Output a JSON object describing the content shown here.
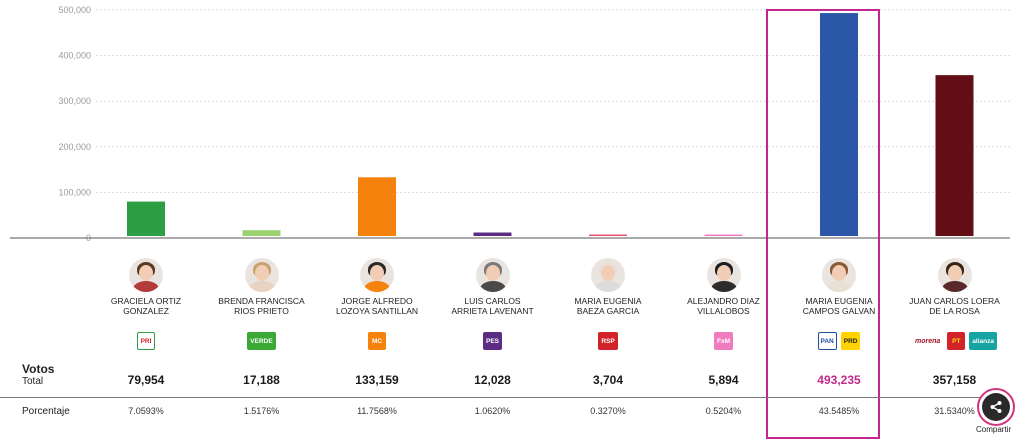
{
  "chart_data": {
    "type": "bar",
    "categories": [
      "GRACIELA ORTIZ GONZALEZ",
      "BRENDA FRANCISCA RIOS PRIETO",
      "JORGE ALFREDO LOZOYA SANTILLAN",
      "LUIS CARLOS ARRIETA LAVENANT",
      "MARIA EUGENIA BAEZA GARCIA",
      "ALEJANDRO DIAZ VILLALOBOS",
      "MARIA EUGENIA CAMPOS GALVAN",
      "JUAN CARLOS LOERA DE LA ROSA"
    ],
    "values": [
      79954,
      17188,
      133159,
      12028,
      3704,
      5894,
      493235,
      357158
    ],
    "ylim": [
      0,
      500000
    ],
    "yticks": [
      0,
      100000,
      200000,
      300000,
      400000,
      500000
    ],
    "ytick_labels": [
      "0",
      "100,000",
      "200,000",
      "300,000",
      "400,000",
      "500,000"
    ],
    "grid": true,
    "highlighted_index": 6
  },
  "colors": {
    "bars": [
      "#2e9e44",
      "#9bd26f",
      "#f5820d",
      "#5a2d82",
      "#e5546e",
      "#f07cbf",
      "#2b57a8",
      "#630d15"
    ],
    "highlight": "#c2288c"
  },
  "candidates": [
    {
      "name_line1": "GRACIELA ORTIZ",
      "name_line2": "GONZALEZ",
      "votes": "79,954",
      "percent": "7.0593%",
      "avatar_icon": "woman-portrait-icon",
      "hair": "#5a3a24",
      "shirt": "#b23b3b",
      "logos": [
        {
          "icon": "pri-logo-icon",
          "text": "PRI",
          "bg": "#ffffff",
          "fg": "#d2232a",
          "border": "#2e9e44"
        }
      ]
    },
    {
      "name_line1": "BRENDA FRANCISCA",
      "name_line2": "RIOS PRIETO",
      "votes": "17,188",
      "percent": "1.5176%",
      "avatar_icon": "woman-portrait-icon",
      "hair": "#c9a070",
      "shirt": "#e8d2c2",
      "logos": [
        {
          "icon": "verde-logo-icon",
          "text": "VERDE",
          "bg": "#3aa935",
          "fg": "#ffffff",
          "border": "#3aa935"
        }
      ]
    },
    {
      "name_line1": "JORGE ALFREDO",
      "name_line2": "LOZOYA SANTILLAN",
      "votes": "133,159",
      "percent": "11.7568%",
      "avatar_icon": "man-portrait-icon",
      "hair": "#2a2a2a",
      "shirt": "#f5820d",
      "logos": [
        {
          "icon": "movimiento-ciudadano-logo-icon",
          "text": "MC",
          "bg": "#f5820d",
          "fg": "#ffffff",
          "border": "#f5820d"
        }
      ]
    },
    {
      "name_line1": "LUIS CARLOS",
      "name_line2": "ARRIETA LAVENANT",
      "votes": "12,028",
      "percent": "1.0620%",
      "avatar_icon": "man-portrait-icon",
      "hair": "#7a7a7a",
      "shirt": "#4a4a4a",
      "logos": [
        {
          "icon": "pes-logo-icon",
          "text": "PES",
          "bg": "#5a2d82",
          "fg": "#ffffff",
          "border": "#5a2d82"
        }
      ]
    },
    {
      "name_line1": "MARIA EUGENIA",
      "name_line2": "BAEZA GARCIA",
      "votes": "3,704",
      "percent": "0.3270%",
      "avatar_icon": "woman-portrait-icon",
      "hair": "#e6e0d8",
      "shirt": "#dcdcdc",
      "logos": [
        {
          "icon": "rsp-logo-icon",
          "text": "RSP",
          "bg": "#d2232a",
          "fg": "#ffffff",
          "border": "#d2232a"
        }
      ]
    },
    {
      "name_line1": "ALEJANDRO DIAZ",
      "name_line2": "VILLALOBOS",
      "votes": "5,894",
      "percent": "0.5204%",
      "avatar_icon": "man-portrait-icon",
      "hair": "#1e1e1e",
      "shirt": "#2c2c2c",
      "logos": [
        {
          "icon": "fuerza-mexico-logo-icon",
          "text": "FxM",
          "bg": "#f07cbf",
          "fg": "#ffffff",
          "border": "#f07cbf"
        }
      ]
    },
    {
      "name_line1": "MARIA EUGENIA",
      "name_line2": "CAMPOS GALVAN",
      "votes": "493,235",
      "percent": "43.5485%",
      "avatar_icon": "woman-portrait-icon",
      "hair": "#8a5a34",
      "shirt": "#e9dfd4",
      "logos": [
        {
          "icon": "pan-logo-icon",
          "text": "PAN",
          "bg": "#ffffff",
          "fg": "#1f4e9d",
          "border": "#1f4e9d"
        },
        {
          "icon": "prd-logo-icon",
          "text": "PRD",
          "bg": "#ffd200",
          "fg": "#222222",
          "border": "#ffd200"
        }
      ]
    },
    {
      "name_line1": "JUAN CARLOS LOERA",
      "name_line2": "DE LA ROSA",
      "votes": "357,158",
      "percent": "31.5340%",
      "avatar_icon": "man-portrait-icon",
      "hair": "#3a2418",
      "shirt": "#5a2a2a",
      "logos": [
        {
          "icon": "morena-logo-icon",
          "text": "morena",
          "bg": "#ffffff",
          "fg": "#a1152a",
          "border": "#ffffff"
        },
        {
          "icon": "pt-logo-icon",
          "text": "PT",
          "bg": "#d2232a",
          "fg": "#ffe100",
          "border": "#d2232a"
        },
        {
          "icon": "nueva-alianza-logo-icon",
          "text": "alianza",
          "bg": "#16a3a3",
          "fg": "#ffffff",
          "border": "#16a3a3"
        }
      ]
    }
  ],
  "labels": {
    "votos": "Votos",
    "total": "Total",
    "porcentaje": "Porcentaje",
    "share": "Compartir"
  }
}
